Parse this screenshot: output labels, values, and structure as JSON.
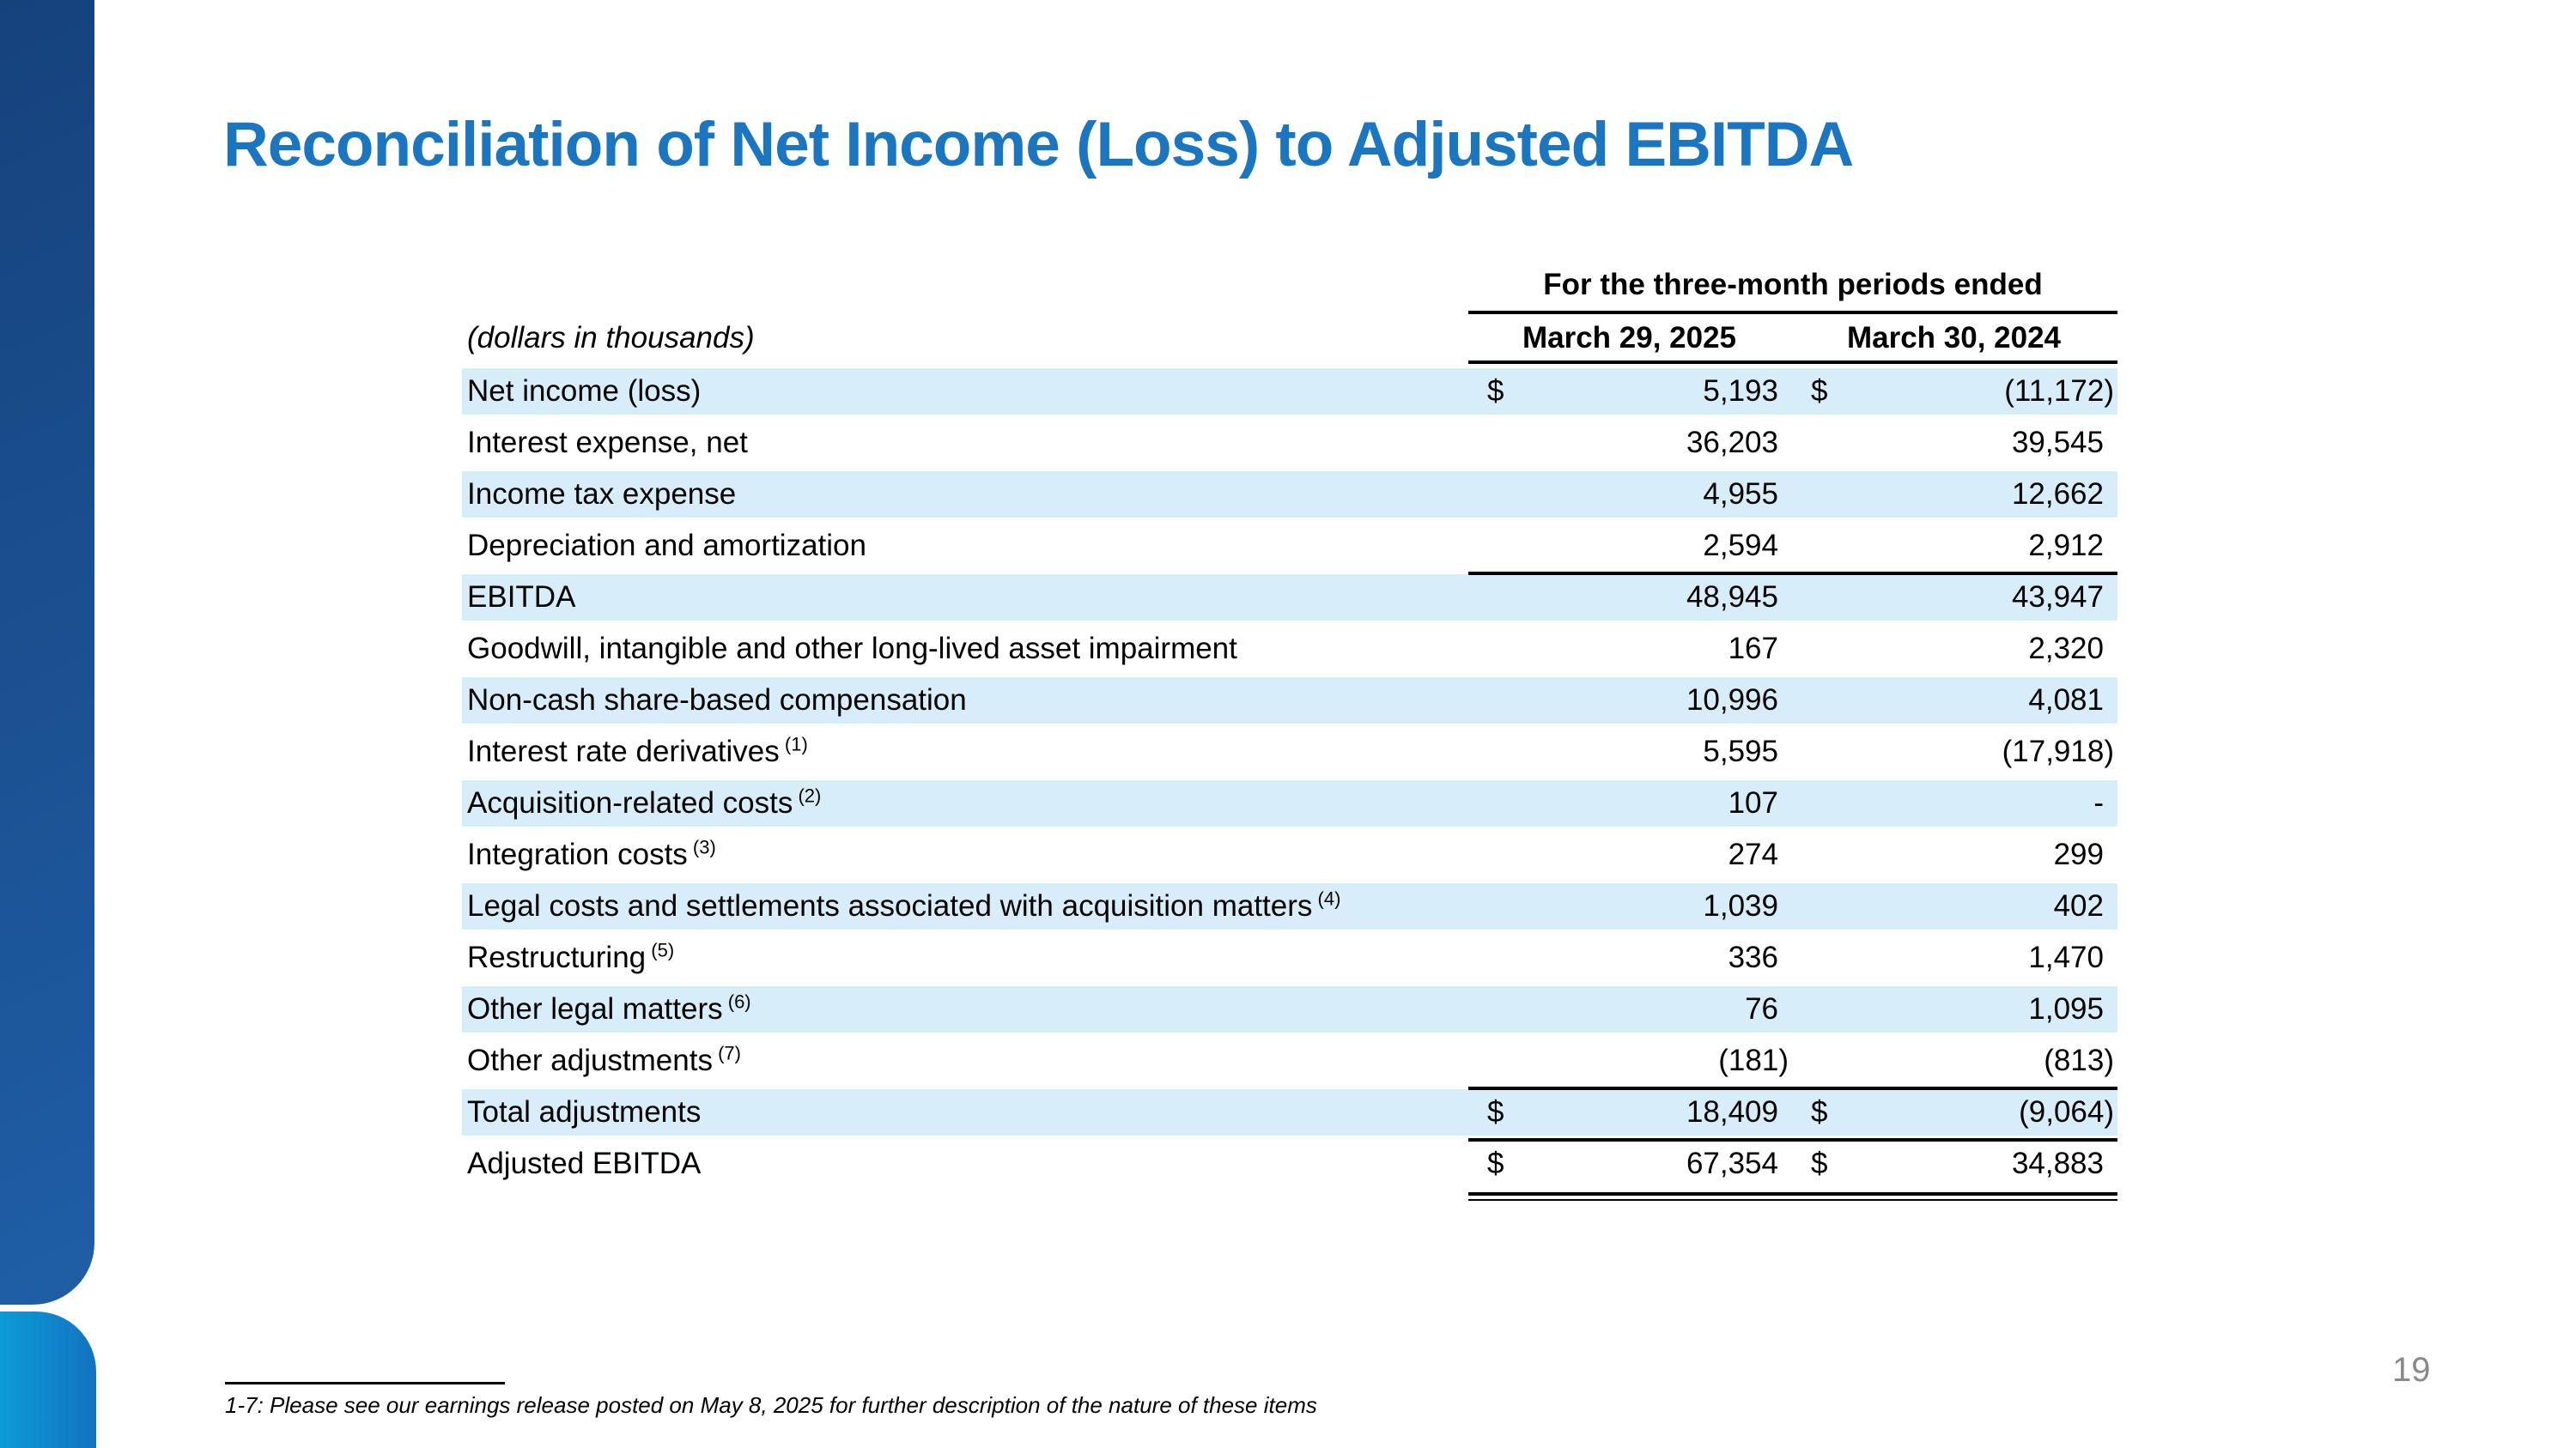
{
  "slide": {
    "title": "Reconciliation of Net Income (Loss) to Adjusted EBITDA",
    "page_number": "19",
    "footnote": "1-7: Please see our earnings release posted on May 8, 2025 for further description of the nature of these items"
  },
  "table": {
    "left_header": "(dollars in thousands)",
    "group_header": "For the three-month periods ended",
    "columns": [
      "March 29, 2025",
      "March 30, 2024"
    ],
    "rows": [
      {
        "label": "Net income (loss)",
        "sup": "",
        "shaded": true,
        "d1": "$",
        "v1": "5,193",
        "d2": "$",
        "v2": "(11,172)",
        "rule_above": false,
        "double_rule_below": false
      },
      {
        "label": "Interest expense, net",
        "sup": "",
        "shaded": false,
        "d1": "",
        "v1": "36,203",
        "d2": "",
        "v2": "39,545",
        "rule_above": false,
        "double_rule_below": false
      },
      {
        "label": "Income tax expense",
        "sup": "",
        "shaded": true,
        "d1": "",
        "v1": "4,955",
        "d2": "",
        "v2": "12,662",
        "rule_above": false,
        "double_rule_below": false
      },
      {
        "label": "Depreciation and amortization",
        "sup": "",
        "shaded": false,
        "d1": "",
        "v1": "2,594",
        "d2": "",
        "v2": "2,912",
        "rule_above": false,
        "double_rule_below": false
      },
      {
        "label": "EBITDA",
        "sup": "",
        "shaded": true,
        "d1": "",
        "v1": "48,945",
        "d2": "",
        "v2": "43,947",
        "rule_above": true,
        "double_rule_below": false
      },
      {
        "label": "Goodwill, intangible and other long-lived asset impairment",
        "sup": "",
        "shaded": false,
        "d1": "",
        "v1": "167",
        "d2": "",
        "v2": "2,320",
        "rule_above": false,
        "double_rule_below": false
      },
      {
        "label": "Non-cash share-based compensation",
        "sup": "",
        "shaded": true,
        "d1": "",
        "v1": "10,996",
        "d2": "",
        "v2": "4,081",
        "rule_above": false,
        "double_rule_below": false
      },
      {
        "label": "Interest rate derivatives",
        "sup": "(1)",
        "shaded": false,
        "d1": "",
        "v1": "5,595",
        "d2": "",
        "v2": "(17,918)",
        "rule_above": false,
        "double_rule_below": false
      },
      {
        "label": "Acquisition-related costs",
        "sup": "(2)",
        "shaded": true,
        "d1": "",
        "v1": "107",
        "d2": "",
        "v2": "-",
        "rule_above": false,
        "double_rule_below": false
      },
      {
        "label": "Integration costs",
        "sup": "(3)",
        "shaded": false,
        "d1": "",
        "v1": "274",
        "d2": "",
        "v2": "299",
        "rule_above": false,
        "double_rule_below": false
      },
      {
        "label": "Legal costs and settlements associated with acquisition matters",
        "sup": "(4)",
        "shaded": true,
        "d1": "",
        "v1": "1,039",
        "d2": "",
        "v2": "402",
        "rule_above": false,
        "double_rule_below": false
      },
      {
        "label": "Restructuring",
        "sup": "(5)",
        "shaded": false,
        "d1": "",
        "v1": "336",
        "d2": "",
        "v2": "1,470",
        "rule_above": false,
        "double_rule_below": false
      },
      {
        "label": "Other legal matters",
        "sup": "(6)",
        "shaded": true,
        "d1": "",
        "v1": "76",
        "d2": "",
        "v2": "1,095",
        "rule_above": false,
        "double_rule_below": false
      },
      {
        "label": "Other adjustments",
        "sup": "(7)",
        "shaded": false,
        "d1": "",
        "v1": "(181)",
        "d2": "",
        "v2": "(813)",
        "rule_above": false,
        "double_rule_below": false
      },
      {
        "label": "Total adjustments",
        "sup": "",
        "shaded": true,
        "d1": "$",
        "v1": "18,409",
        "d2": "$",
        "v2": "(9,064)",
        "rule_above": true,
        "double_rule_below": false
      },
      {
        "label": "Adjusted EBITDA",
        "sup": "",
        "shaded": false,
        "d1": "$",
        "v1": "67,354",
        "d2": "$",
        "v2": "34,883",
        "rule_above": true,
        "double_rule_below": true
      }
    ]
  },
  "colors": {
    "title": "#1b76c2",
    "row_shade": "#d7edf9",
    "sidebar_dark_top": "#16427c",
    "sidebar_dark_bottom": "#1f5ea6",
    "sidebar_light_left": "#0d9bd8",
    "sidebar_light_right": "#1373c0",
    "page_number": "#8a8a8a"
  }
}
